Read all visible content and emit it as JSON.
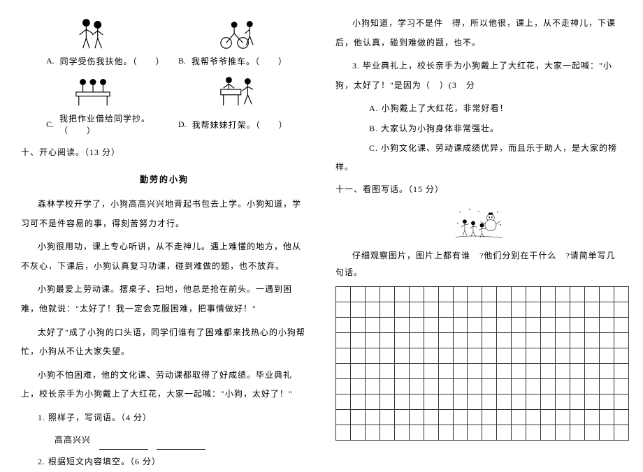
{
  "left": {
    "opts": {
      "a": {
        "label": "A.",
        "text": "同学受伤我扶他。（　　）"
      },
      "b": {
        "label": "B.",
        "text": "我帮爷爷推车。（　　）"
      },
      "c": {
        "label": "C.",
        "text": "我把作业借给同学抄。（　　）"
      },
      "d": {
        "label": "D.",
        "text": "我帮妹妹打架。（　　）"
      }
    },
    "section10": "十、开心阅读。（13 分）",
    "storyTitle": "勤劳的小狗",
    "p1": "森林学校开学了，小狗高高兴兴地背起书包去上学。小狗知道，学习可不是件容易的事，得刻苦努力才行。",
    "p2": "小狗很用功，课上专心听讲，从不走神儿。遇上难懂的地方，他从不灰心，下课后，小狗认真复习功课，碰到难做的题，也不放弃。",
    "p3": "小狗最爱上劳动课。摆桌子、扫地，他总是抢在前头。一遇到困难，他就说：\"太好了！我一定会克服困难，把事情做好！\"",
    "p4": "太好了\"成了小狗的口头语，同学们谁有了困难都来找热心的小狗帮忙，小狗从不让大家失望。",
    "p5": "小狗不怕困难，他的文化课、劳动课都取得了好成绩。毕业典礼上，校长亲手为小狗戴上了大红花，大家一起喊：\"小狗，太好了！\"",
    "q1": "1. 照样子，写词语。（4 分）",
    "q1example": "高高兴兴",
    "q2": "2. 根据短文内容填空。（6 分）"
  },
  "right": {
    "p6a": "小狗知道，学习不是件　得，所以他很，课上，从不走神儿，下课后，他认真，碰到难做的题，也不。",
    "q3": "3. 毕业典礼上，校长亲手为小狗戴上了大红花，大家一起喊：\"小狗，太好了！\"是因为（　）(3　分",
    "optA": "A. 小狗戴上了大红花，非常好看！",
    "optB": "B. 大家认为小狗身体非常强壮。",
    "optC": "C. 小狗文化课、劳动课成绩优异，而且乐于助人，是大家的榜样。",
    "section11": "十一、看图写话。（15 分）",
    "gridPrompt": "仔细观察图片，图片上都有谁　?他们分别在干什么　?请简单写几句话。"
  },
  "grid": {
    "rows": 10,
    "cols": 20
  },
  "colors": {
    "text": "#000000",
    "bg": "#ffffff",
    "border": "#333333"
  }
}
